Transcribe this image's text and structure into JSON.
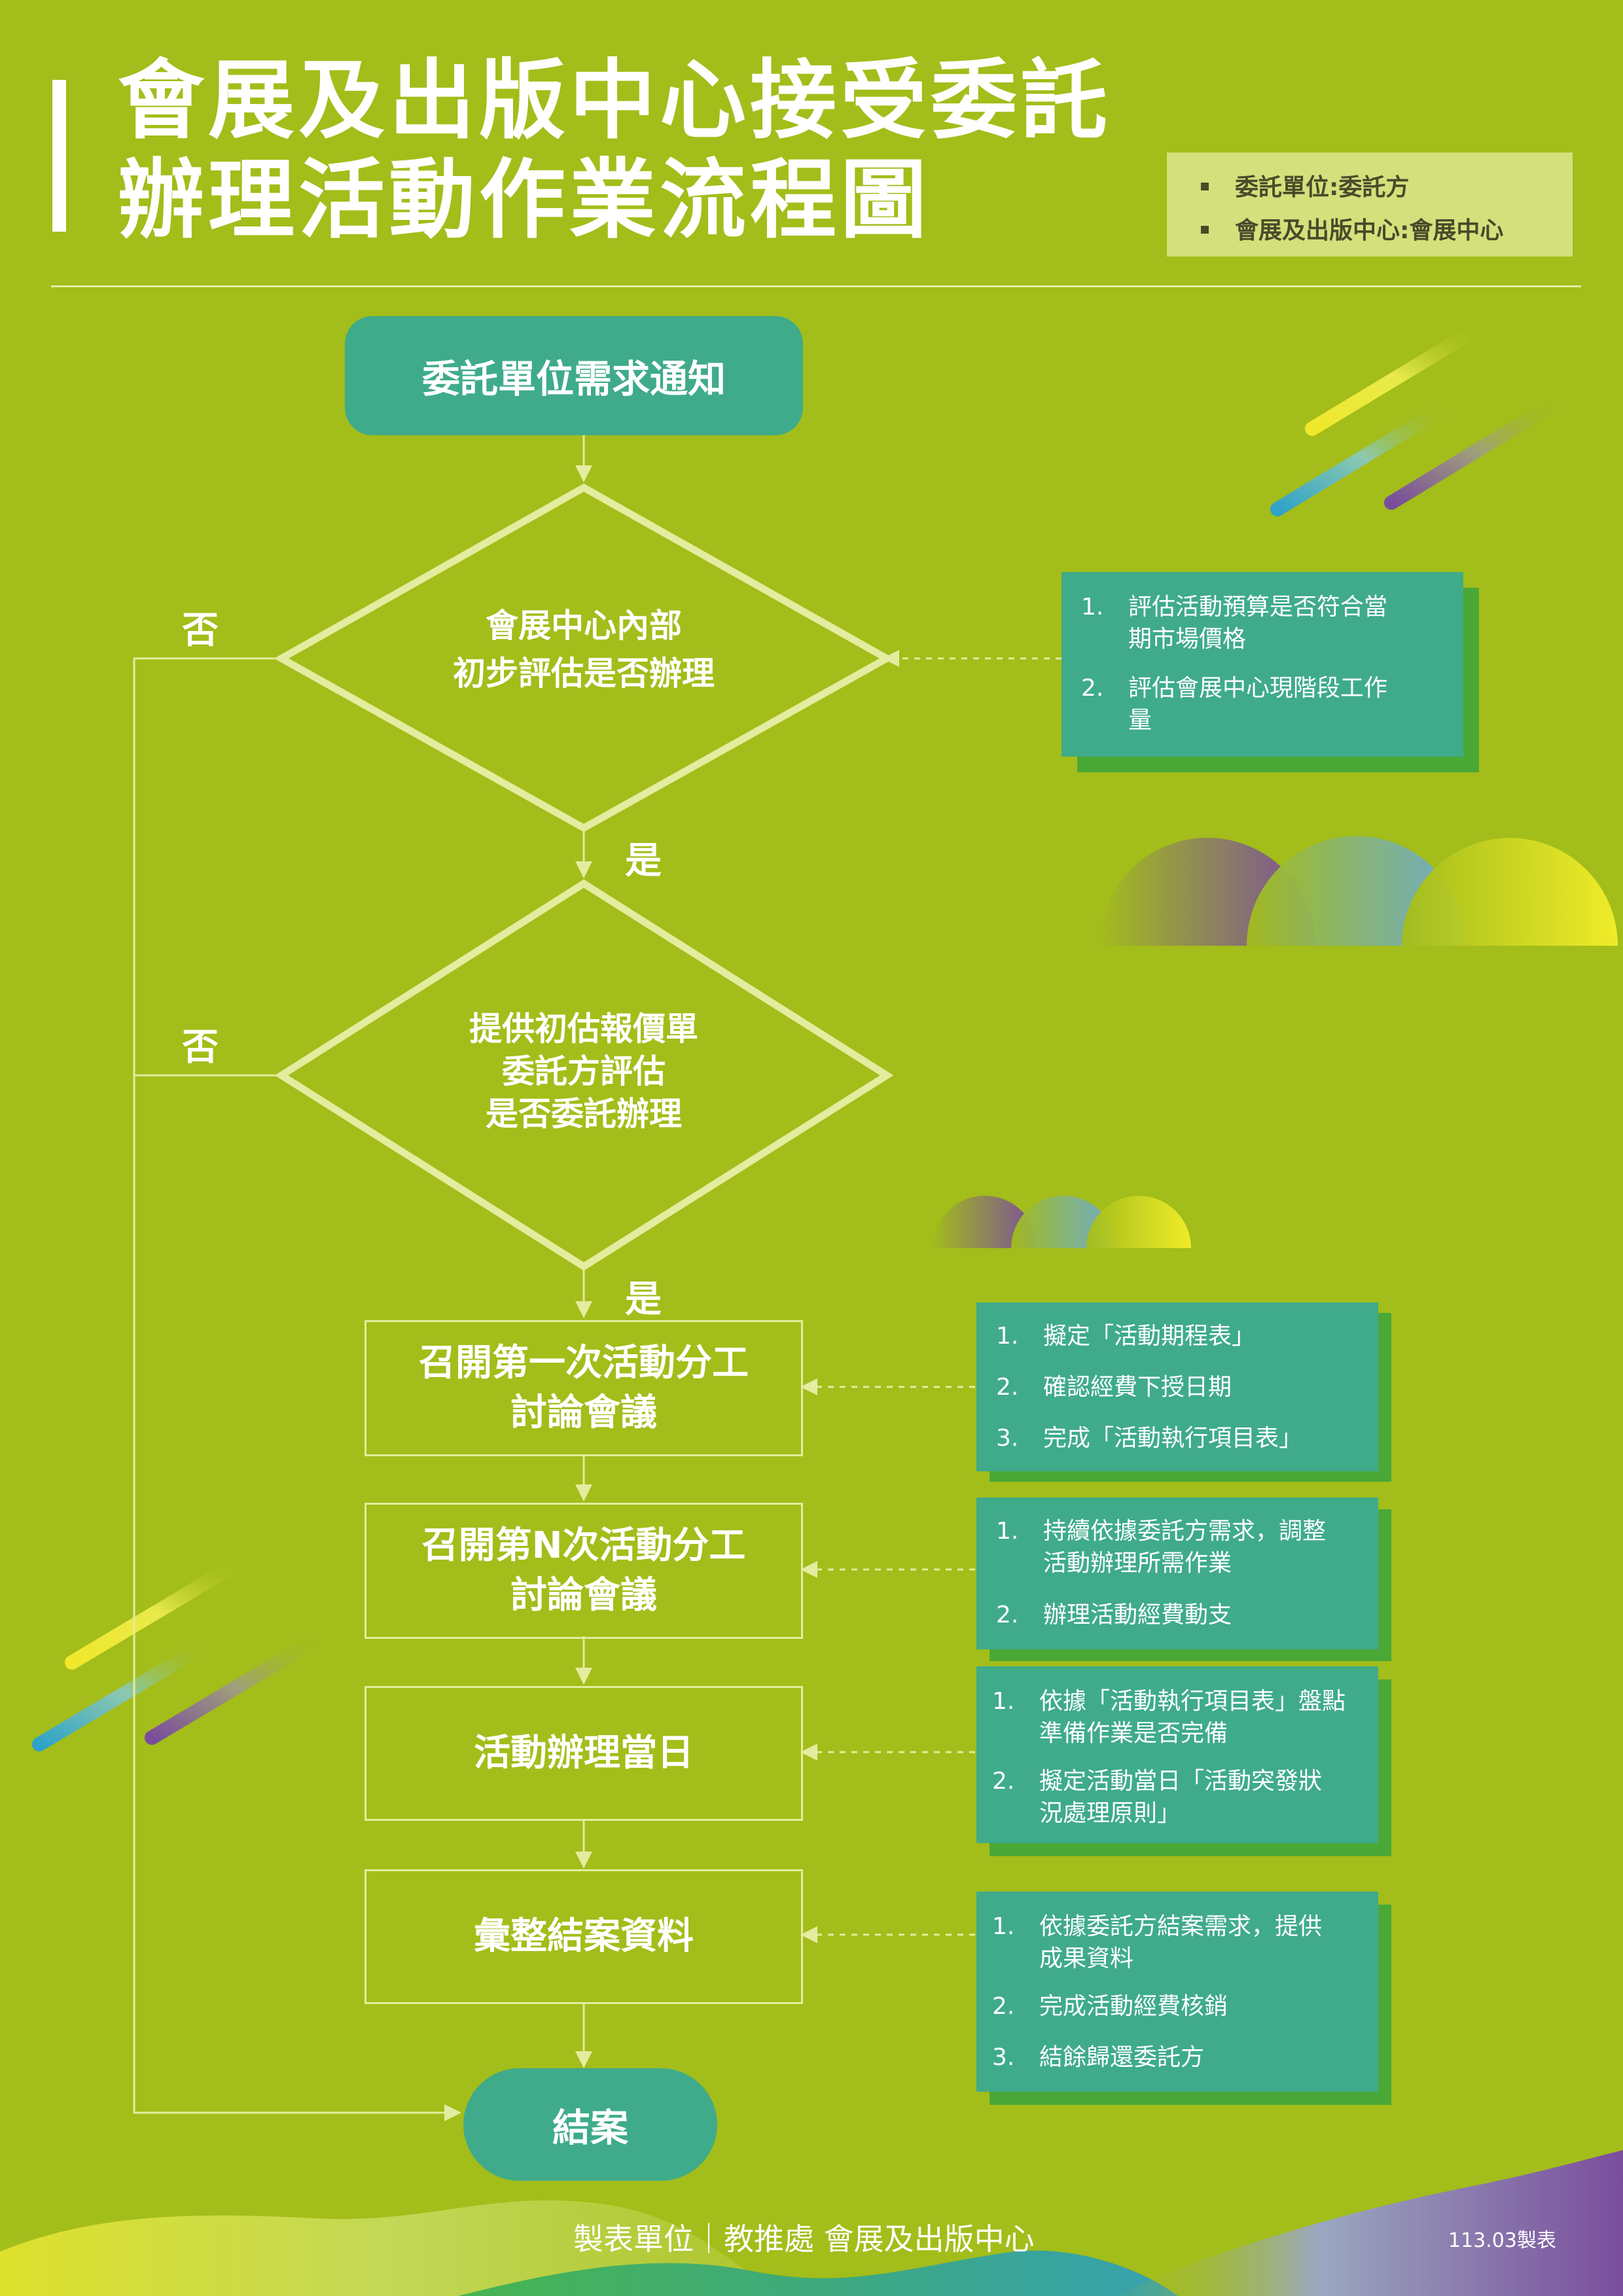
{
  "title": {
    "line1": "會展及出版中心接受委託",
    "line2": "辦理活動作業流程圖"
  },
  "legend": [
    "委託單位:委託方",
    "會展及出版中心:會展中心"
  ],
  "flow": {
    "start": "委託單位需求通知",
    "decision1": [
      "會展中心內部",
      "初步評估是否辦理"
    ],
    "decision2": [
      "提供初估報價單",
      "委託方評估",
      "是否委託辦理"
    ],
    "step1": [
      "召開第一次活動分工",
      "討論會議"
    ],
    "stepN": [
      "召開第N次活動分工",
      "討論會議"
    ],
    "day": "活動辦理當日",
    "compile": "彙整結案資料",
    "end": "結案",
    "yes_label": "是",
    "no_label": "否"
  },
  "notes": {
    "decision1": [
      {
        "num": "1.",
        "lines": [
          "評估活動預算是否符合當",
          "期市場價格"
        ]
      },
      {
        "num": "2.",
        "lines": [
          "評估會展中心現階段工作",
          "量"
        ]
      }
    ],
    "step1": [
      {
        "num": "1.",
        "lines": [
          "擬定「活動期程表」"
        ]
      },
      {
        "num": "2.",
        "lines": [
          "確認經費下授日期"
        ]
      },
      {
        "num": "3.",
        "lines": [
          "完成「活動執行項目表」"
        ]
      }
    ],
    "stepN": [
      {
        "num": "1.",
        "lines": [
          "持續依據委託方需求，調整",
          "活動辦理所需作業"
        ]
      },
      {
        "num": "2.",
        "lines": [
          "辦理活動經費動支"
        ]
      }
    ],
    "day": [
      {
        "num": "1.",
        "lines": [
          "依據「活動執行項目表」盤點",
          "準備作業是否完備"
        ]
      },
      {
        "num": "2.",
        "lines": [
          "擬定活動當日「活動突發狀",
          "況處理原則」"
        ]
      }
    ],
    "compile": [
      {
        "num": "1.",
        "lines": [
          "依據委託方結案需求，提供",
          "成果資料"
        ]
      },
      {
        "num": "2.",
        "lines": [
          "完成活動經費核銷"
        ]
      },
      {
        "num": "3.",
        "lines": [
          "結餘歸還委託方"
        ]
      }
    ]
  },
  "footer": {
    "maker": "製表單位｜教推處 會展及出版中心",
    "date": "113.03製表"
  },
  "colors": {
    "background": "#a3bd1a",
    "node_fill": "#3fab8b",
    "note_shadow": "#4aa836",
    "line": "#e4ec9f",
    "legend_bg": "#d4e07c"
  }
}
